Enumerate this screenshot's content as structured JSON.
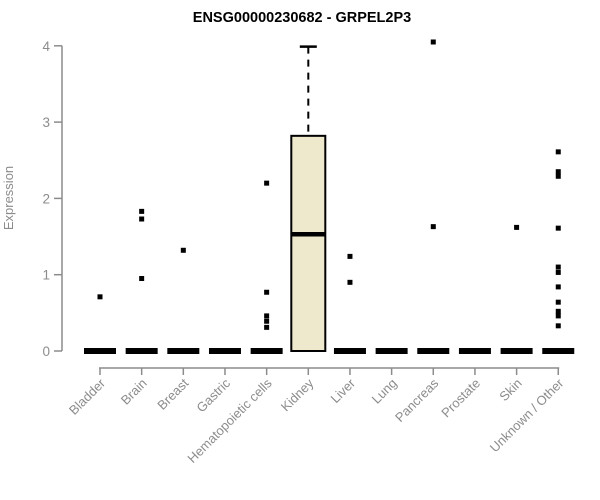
{
  "title": "ENSG00000230682 - GRPEL2P3",
  "chart_data": {
    "type": "boxplot",
    "title": "ENSG00000230682 - GRPEL2P3",
    "xlabel": "",
    "ylabel": "Expression",
    "ylim": [
      0,
      4
    ],
    "yticks": [
      0,
      1,
      2,
      3,
      4
    ],
    "grid": false,
    "legend": "none",
    "categories": [
      "Bladder",
      "Brain",
      "Breast",
      "Gastric",
      "Hematopoietic cells",
      "Kidney",
      "Liver",
      "Lung",
      "Pancreas",
      "Prostate",
      "Skin",
      "Unknown / Other"
    ],
    "boxes": [
      {
        "category": "Bladder",
        "q1": 0,
        "median": 0,
        "q3": 0,
        "whisker_low": 0,
        "whisker_high": 0,
        "outliers": [
          0.71
        ]
      },
      {
        "category": "Brain",
        "q1": 0,
        "median": 0,
        "q3": 0,
        "whisker_low": 0,
        "whisker_high": 0,
        "outliers": [
          1.83,
          1.73,
          0.95
        ]
      },
      {
        "category": "Breast",
        "q1": 0,
        "median": 0,
        "q3": 0,
        "whisker_low": 0,
        "whisker_high": 0,
        "outliers": [
          1.32
        ]
      },
      {
        "category": "Gastric",
        "q1": 0,
        "median": 0,
        "q3": 0,
        "whisker_low": 0,
        "whisker_high": 0,
        "outliers": []
      },
      {
        "category": "Hematopoietic cells",
        "q1": 0,
        "median": 0,
        "q3": 0,
        "whisker_low": 0,
        "whisker_high": 0,
        "outliers": [
          2.2,
          0.77,
          0.46,
          0.39,
          0.31
        ]
      },
      {
        "category": "Kidney",
        "q1": 0,
        "median": 1.53,
        "q3": 2.82,
        "whisker_low": 0,
        "whisker_high": 3.99,
        "outliers": []
      },
      {
        "category": "Liver",
        "q1": 0,
        "median": 0,
        "q3": 0,
        "whisker_low": 0,
        "whisker_high": 0,
        "outliers": [
          1.24,
          0.9
        ]
      },
      {
        "category": "Lung",
        "q1": 0,
        "median": 0,
        "q3": 0,
        "whisker_low": 0,
        "whisker_high": 0,
        "outliers": []
      },
      {
        "category": "Pancreas",
        "q1": 0,
        "median": 0,
        "q3": 0,
        "whisker_low": 0,
        "whisker_high": 0,
        "outliers": [
          4.05,
          1.63
        ]
      },
      {
        "category": "Prostate",
        "q1": 0,
        "median": 0,
        "q3": 0,
        "whisker_low": 0,
        "whisker_high": 0,
        "outliers": []
      },
      {
        "category": "Skin",
        "q1": 0,
        "median": 0,
        "q3": 0,
        "whisker_low": 0,
        "whisker_high": 0,
        "outliers": []
      },
      {
        "category": "Unknown / Other",
        "q1": 0,
        "median": 0,
        "q3": 0,
        "whisker_low": 0,
        "whisker_high": 0,
        "outliers": [
          2.61,
          2.35,
          2.29,
          1.61,
          1.1,
          1.03,
          0.84,
          0.64,
          0.52,
          0.46,
          0.33
        ]
      }
    ],
    "extra_outliers": {
      "Skin": [
        1.62
      ]
    },
    "colors": {
      "background": "#ffffff",
      "box_fill": "#EEE8CD",
      "box_border": "#000000",
      "median": "#000000",
      "whisker": "#000000",
      "point": "#000000",
      "axis": "#8c8c8c",
      "tick_label": "#8c8c8c",
      "title": "#000000"
    }
  }
}
